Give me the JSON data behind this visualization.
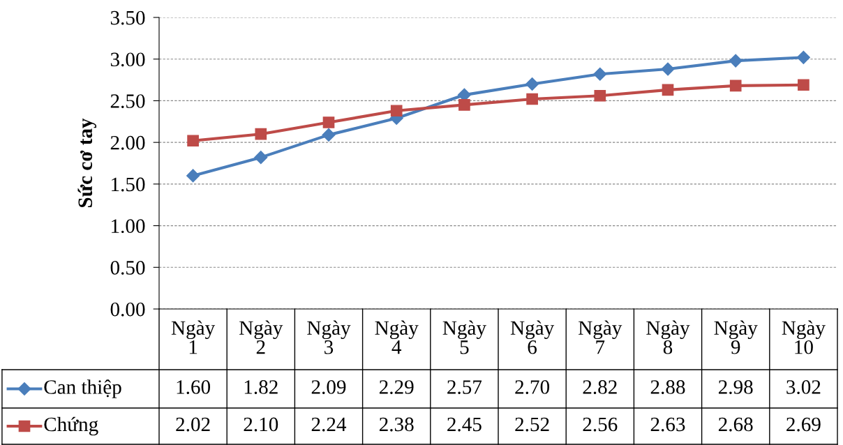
{
  "chart_data": {
    "type": "line",
    "ylabel": "Sức cơ tay",
    "categories": [
      "Ngày 1",
      "Ngày 2",
      "Ngày 3",
      "Ngày 4",
      "Ngày 5",
      "Ngày 6",
      "Ngày 7",
      "Ngày 8",
      "Ngày 9",
      "Ngày 10"
    ],
    "series": [
      {
        "name": "Can thiệp",
        "color": "#4a7ebb",
        "marker": "diamond",
        "values": [
          1.6,
          1.82,
          2.09,
          2.29,
          2.57,
          2.7,
          2.82,
          2.88,
          2.98,
          3.02
        ],
        "value_labels": [
          "1.60",
          "1.82",
          "2.09",
          "2.29",
          "2.57",
          "2.70",
          "2.82",
          "2.88",
          "2.98",
          "3.02"
        ]
      },
      {
        "name": "Chứng",
        "color": "#be4b48",
        "marker": "square",
        "values": [
          2.02,
          2.1,
          2.24,
          2.38,
          2.45,
          2.52,
          2.56,
          2.63,
          2.68,
          2.69
        ],
        "value_labels": [
          "2.02",
          "2.10",
          "2.24",
          "2.38",
          "2.45",
          "2.52",
          "2.56",
          "2.63",
          "2.68",
          "2.69"
        ]
      }
    ],
    "ylim": [
      0,
      3.5
    ],
    "yticks": [
      {
        "value": 0,
        "label": "0.00"
      },
      {
        "value": 0.5,
        "label": "0.50"
      },
      {
        "value": 1,
        "label": "1.00"
      },
      {
        "value": 1.5,
        "label": "1.50"
      },
      {
        "value": 2,
        "label": "2.00"
      },
      {
        "value": 2.5,
        "label": "2.50"
      },
      {
        "value": 3,
        "label": "3.00"
      },
      {
        "value": 3.5,
        "label": "3.50"
      }
    ],
    "grid": "y",
    "line_style": "solid",
    "legend": "bottom left"
  }
}
